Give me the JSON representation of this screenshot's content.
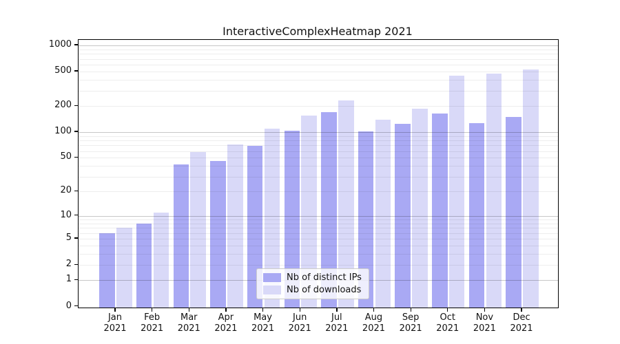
{
  "title": "InteractiveComplexHeatmap 2021",
  "colors": {
    "bar_distinct_ips": "#a9a9f4",
    "bar_downloads": "#d9d9f8",
    "axis": "#000000",
    "grid_minor": "#ececec",
    "grid_major": "#c6c6c6",
    "legend_border": "#cccccc"
  },
  "chart_data": {
    "type": "bar",
    "title": "InteractiveComplexHeatmap 2021",
    "categories": [
      "Jan",
      "Feb",
      "Mar",
      "Apr",
      "May",
      "Jun",
      "Jul",
      "Aug",
      "Sep",
      "Oct",
      "Nov",
      "Dec"
    ],
    "x_tick_year": "2021",
    "series": [
      {
        "name": "Nb of distinct IPs",
        "color": "#a9a9f4",
        "values": [
          6,
          8,
          42,
          46,
          69,
          103,
          170,
          102,
          124,
          165,
          127,
          150
        ]
      },
      {
        "name": "Nb of downloads",
        "color": "#d9d9f8",
        "values": [
          7,
          11,
          59,
          72,
          110,
          155,
          232,
          140,
          185,
          450,
          470,
          530
        ]
      }
    ],
    "xlabel": "",
    "ylabel": "",
    "y_scale": "log10(1+x)",
    "y_ticks": [
      0,
      1,
      2,
      5,
      10,
      20,
      50,
      100,
      200,
      500,
      1000
    ],
    "y_tick_labels": [
      "0",
      "1",
      "2",
      "5",
      "10",
      "20",
      "50",
      "100",
      "200",
      "500",
      "1000"
    ],
    "ylim": [
      0,
      1150
    ],
    "grid": {
      "orientation": "horizontal",
      "minor_at": [
        2,
        3,
        4,
        5,
        6,
        7,
        8,
        9,
        20,
        30,
        40,
        50,
        60,
        70,
        80,
        90,
        200,
        300,
        400,
        500,
        600,
        700,
        800,
        900
      ],
      "major_at": [
        1,
        10,
        100,
        1000
      ]
    },
    "legend_position": "lower center"
  }
}
